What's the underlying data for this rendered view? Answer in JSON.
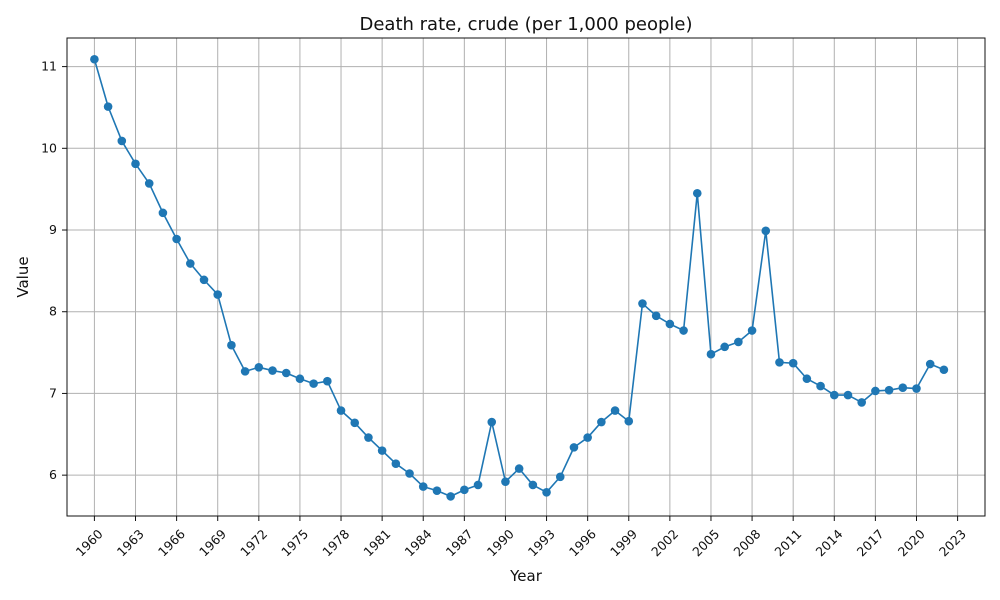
{
  "chart_data": {
    "type": "line",
    "title": "Death rate, crude (per 1,000 people)",
    "xlabel": "Year",
    "ylabel": "Value",
    "grid": true,
    "legend": false,
    "color": "#1f77b4",
    "xlim": [
      1958,
      2025
    ],
    "ylim": [
      5.5,
      11.35
    ],
    "xticks": [
      1960,
      1963,
      1966,
      1969,
      1972,
      1975,
      1978,
      1981,
      1984,
      1987,
      1990,
      1993,
      1996,
      1999,
      2002,
      2005,
      2008,
      2011,
      2014,
      2017,
      2020,
      2023
    ],
    "yticks": [
      6,
      7,
      8,
      9,
      10,
      11
    ],
    "x": [
      1960,
      1961,
      1962,
      1963,
      1964,
      1965,
      1966,
      1967,
      1968,
      1969,
      1970,
      1971,
      1972,
      1973,
      1974,
      1975,
      1976,
      1977,
      1978,
      1979,
      1980,
      1981,
      1982,
      1983,
      1984,
      1985,
      1986,
      1987,
      1988,
      1989,
      1990,
      1991,
      1992,
      1993,
      1994,
      1995,
      1996,
      1997,
      1998,
      1999,
      2000,
      2001,
      2002,
      2003,
      2004,
      2005,
      2006,
      2007,
      2008,
      2009,
      2010,
      2011,
      2012,
      2013,
      2014,
      2015,
      2016,
      2017,
      2018,
      2019,
      2020,
      2021,
      2022
    ],
    "y": [
      11.09,
      10.51,
      10.09,
      9.81,
      9.57,
      9.21,
      8.89,
      8.59,
      8.39,
      8.21,
      7.59,
      7.27,
      7.32,
      7.28,
      7.25,
      7.18,
      7.12,
      7.15,
      6.79,
      6.64,
      6.46,
      6.3,
      6.14,
      6.02,
      5.86,
      5.81,
      5.74,
      5.82,
      5.88,
      6.65,
      5.92,
      6.08,
      5.88,
      5.79,
      5.98,
      6.34,
      6.46,
      6.65,
      6.79,
      6.66,
      8.1,
      7.95,
      7.85,
      7.77,
      9.45,
      7.48,
      7.57,
      7.63,
      7.77,
      8.99,
      7.38,
      7.37,
      7.18,
      7.09,
      6.98,
      6.98,
      6.89,
      7.03,
      7.04,
      7.07,
      7.06,
      7.36,
      7.29
    ]
  }
}
